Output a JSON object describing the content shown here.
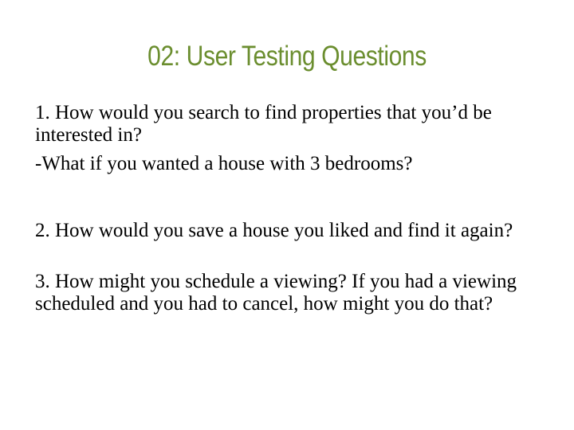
{
  "slide": {
    "title": "02: User Testing Questions",
    "title_color": "#6b8e2f",
    "background": "#ffffff",
    "text_color": "#000000",
    "paragraphs": [
      "1. How would you search to find properties that you’d be interested in?",
      "-What if you wanted a house with 3 bedrooms?",
      "2. How would you save a house you liked and find it again?",
      "3. How might you schedule a viewing?  If you had a viewing scheduled and you had to cancel, how might you do that?"
    ]
  }
}
